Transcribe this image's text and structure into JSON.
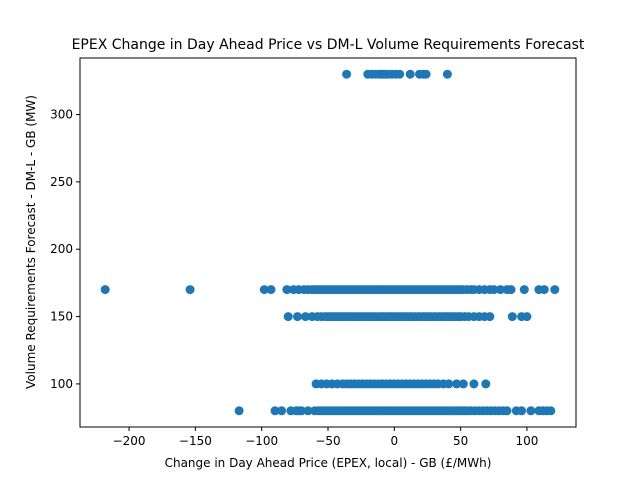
{
  "chart_data": {
    "type": "scatter",
    "title": "EPEX Change in Day Ahead Price vs DM-L Volume Requirements Forecast",
    "xlabel": "Change in Day Ahead Price (EPEX, local) - GB (£/MWh)",
    "ylabel": "Volume Requirements Forecast - DM-L - GB (MW)",
    "xlim": [
      -237,
      137
    ],
    "ylim": [
      68,
      342
    ],
    "xticks": [
      -200,
      -150,
      -100,
      -50,
      0,
      50,
      100
    ],
    "yticks": [
      100,
      150,
      200,
      250,
      300
    ],
    "grid": false,
    "color": "#1f77b4",
    "series": [
      {
        "levels": [
          {
            "y": 330,
            "x": [
              -36,
              -20,
              -17,
              -14,
              -11,
              -9,
              -7,
              -5,
              -2,
              1,
              4,
              12,
              19,
              22,
              24,
              40
            ]
          },
          {
            "y": 170,
            "x": [
              -218,
              -154,
              -98,
              -93,
              -81,
              -76,
              -72,
              -68,
              -65,
              -62,
              -60,
              -58,
              -56,
              -54,
              -52,
              -50,
              -48,
              -46,
              -44,
              -42,
              -40,
              -38,
              -36,
              -34,
              -32,
              -30,
              -28,
              -26,
              -24,
              -22,
              -20,
              -18,
              -16,
              -14,
              -12,
              -10,
              -8,
              -6,
              -4,
              -2,
              0,
              2,
              4,
              6,
              8,
              10,
              12,
              14,
              16,
              18,
              20,
              22,
              24,
              26,
              28,
              30,
              32,
              34,
              36,
              38,
              40,
              42,
              44,
              46,
              48,
              50,
              52,
              55,
              58,
              60,
              64,
              68,
              72,
              75,
              80,
              85,
              88,
              98,
              109,
              113,
              121
            ]
          },
          {
            "y": 150,
            "x": [
              -80,
              -73,
              -67,
              -62,
              -58,
              -55,
              -52,
              -50,
              -48,
              -46,
              -44,
              -42,
              -40,
              -38,
              -36,
              -34,
              -32,
              -30,
              -28,
              -26,
              -24,
              -22,
              -20,
              -18,
              -16,
              -14,
              -12,
              -10,
              -8,
              -6,
              -4,
              -2,
              0,
              2,
              4,
              6,
              8,
              10,
              12,
              14,
              16,
              18,
              20,
              22,
              24,
              26,
              28,
              30,
              32,
              34,
              36,
              38,
              40,
              42,
              44,
              46,
              48,
              50,
              53,
              56,
              60,
              64,
              68,
              72,
              89,
              96,
              100
            ]
          },
          {
            "y": 100,
            "x": [
              -59,
              -55,
              -51,
              -47,
              -43,
              -39,
              -36,
              -33,
              -30,
              -27,
              -24,
              -21,
              -18,
              -15,
              -12,
              -9,
              -6,
              -3,
              0,
              3,
              6,
              9,
              12,
              15,
              18,
              21,
              24,
              27,
              30,
              33,
              37,
              41,
              47,
              52,
              60,
              69
            ]
          },
          {
            "y": 80,
            "x": [
              -117,
              -90,
              -85,
              -78,
              -74,
              -72,
              -70,
              -65,
              -60,
              -57,
              -55,
              -53,
              -51,
              -49,
              -47,
              -45,
              -43,
              -41,
              -39,
              -37,
              -35,
              -33,
              -31,
              -29,
              -27,
              -25,
              -23,
              -21,
              -19,
              -17,
              -15,
              -13,
              -11,
              -9,
              -7,
              -5,
              -3,
              -1,
              1,
              3,
              5,
              7,
              9,
              11,
              13,
              15,
              17,
              19,
              21,
              23,
              25,
              27,
              29,
              31,
              33,
              35,
              37,
              39,
              41,
              43,
              45,
              47,
              49,
              51,
              53,
              55,
              58,
              61,
              64,
              67,
              70,
              73,
              76,
              79,
              82,
              85,
              92,
              96,
              103,
              109,
              112,
              115,
              118
            ]
          }
        ]
      }
    ]
  }
}
